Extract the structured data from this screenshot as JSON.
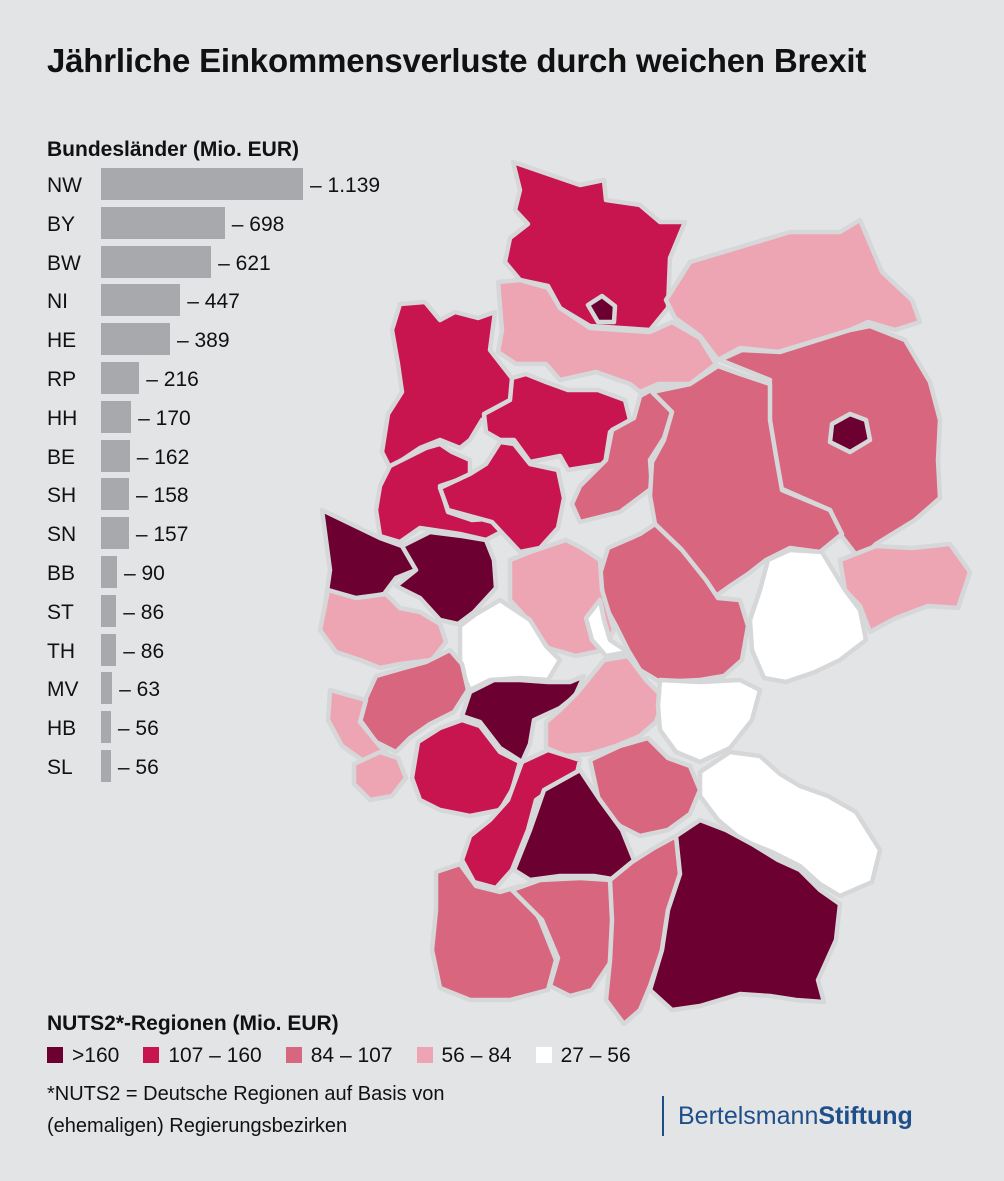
{
  "title": "Jährliche Einkommensverluste durch weichen Brexit",
  "bar_section": {
    "title": "Bundesländer (Mio. EUR)",
    "bar_color": "#a7a9ac",
    "bars": [
      {
        "code": "NW",
        "value": 1139,
        "label": "– 1.139"
      },
      {
        "code": "BY",
        "value": 698,
        "label": "– 698"
      },
      {
        "code": "BW",
        "value": 621,
        "label": "– 621"
      },
      {
        "code": "NI",
        "value": 447,
        "label": "– 447"
      },
      {
        "code": "HE",
        "value": 389,
        "label": "– 389"
      },
      {
        "code": "RP",
        "value": 216,
        "label": "– 216"
      },
      {
        "code": "HH",
        "value": 170,
        "label": "– 170"
      },
      {
        "code": "BE",
        "value": 162,
        "label": "– 162"
      },
      {
        "code": "SH",
        "value": 158,
        "label": "– 158"
      },
      {
        "code": "SN",
        "value": 157,
        "label": "– 157"
      },
      {
        "code": "BB",
        "value": 90,
        "label": "– 90"
      },
      {
        "code": "ST",
        "value": 86,
        "label": "– 86"
      },
      {
        "code": "TH",
        "value": 86,
        "label": "– 86"
      },
      {
        "code": "MV",
        "value": 63,
        "label": "– 63"
      },
      {
        "code": "HB",
        "value": 56,
        "label": "– 56"
      },
      {
        "code": "SL",
        "value": 56,
        "label": "– 56"
      }
    ]
  },
  "legend": {
    "title": "NUTS2*-Regionen (Mio. EUR)",
    "items": [
      {
        "label": ">160",
        "color": "#6c0031"
      },
      {
        "label": "107 – 160",
        "color": "#c8144f"
      },
      {
        "label": "84 – 107",
        "color": "#d9667f"
      },
      {
        "label": "56 – 84",
        "color": "#eda5b3"
      },
      {
        "label": "27 – 56",
        "color": "#ffffff"
      }
    ],
    "note": "*NUTS2 = Deutsche Regionen auf Basis von (ehemaligen) Regierungsbezirken"
  },
  "logo": {
    "part1": "Bertelsmann",
    "part2": "Stiftung"
  },
  "regions": [
    {
      "class": "107 – 160"
    },
    {
      "class": ">160"
    },
    {
      "class": "56 – 84"
    },
    {
      "class": "56 – 84"
    },
    {
      "class": "84 – 107"
    },
    {
      "class": ">160"
    },
    {
      "class": "107 – 160"
    },
    {
      "class": "107 – 160"
    },
    {
      "class": "107 – 160"
    },
    {
      "class": "107 – 160"
    },
    {
      "class": "84 – 107"
    },
    {
      "class": "84 – 107"
    },
    {
      "class": "56 – 84"
    },
    {
      "class": "84 – 107"
    },
    {
      "class": "27 – 56"
    },
    {
      "class": "56 – 84"
    },
    {
      "class": ">160"
    },
    {
      "class": ">160"
    },
    {
      "class": "27 – 56"
    },
    {
      "class": "56 – 84"
    },
    {
      "class": "84 – 107"
    },
    {
      "class": ">160"
    },
    {
      "class": "56 – 84"
    },
    {
      "class": "56 – 84"
    },
    {
      "class": "56 – 84"
    },
    {
      "class": "107 – 160"
    },
    {
      "class": "27 – 56"
    },
    {
      "class": "84 – 107"
    },
    {
      "class": "27 – 56"
    },
    {
      "class": "107 – 160"
    },
    {
      "class": ">160"
    },
    {
      "class": "84 – 107"
    },
    {
      "class": "84 – 107"
    },
    {
      "class": "84 – 107"
    },
    {
      "class": ">160"
    },
    {
      "class": "27 – 56"
    }
  ]
}
